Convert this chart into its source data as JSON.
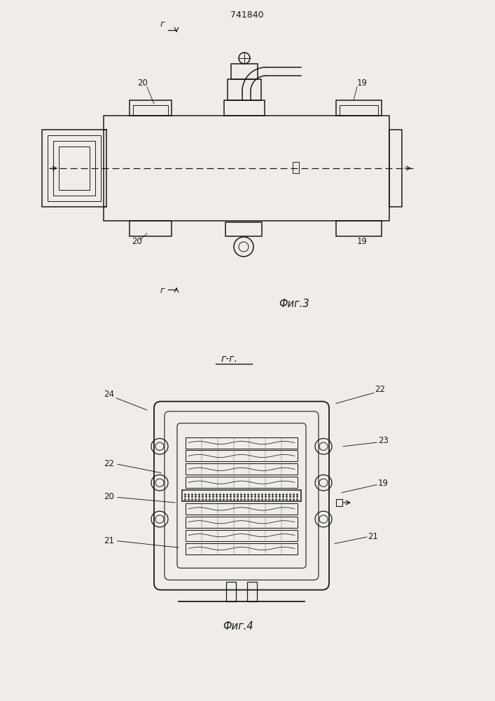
{
  "bg_color": "#f0ede8",
  "line_color": "#1a1a1a",
  "title_text": "741840",
  "fig3_caption": "Фиг.3",
  "fig4_caption": "Фиг.4",
  "section_label": "г-г.",
  "fig_width": 7.07,
  "fig_height": 10.0
}
